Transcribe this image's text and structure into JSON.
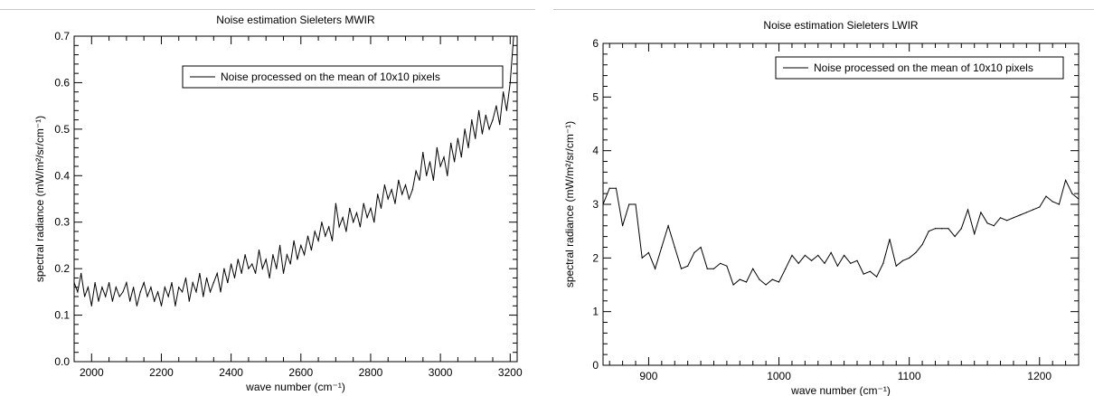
{
  "chart_data": [
    {
      "type": "line",
      "title": "Noise estimation Sieleters MWIR",
      "xlabel": "wave number (cm⁻¹)",
      "ylabel": "spectral radiance (mW/m²/sr/cm⁻¹)",
      "xlim": [
        1950,
        3220
      ],
      "ylim": [
        0.0,
        0.7
      ],
      "x_ticks": [
        2000,
        2200,
        2400,
        2600,
        2800,
        3000,
        3200
      ],
      "y_ticks": [
        0.0,
        0.1,
        0.2,
        0.3,
        0.4,
        0.5,
        0.6,
        0.7
      ],
      "y_tick_decimals": 1,
      "grid": false,
      "legend_position": "top-right",
      "series": [
        {
          "name": "Noise processed on the mean of 10x10 pixels",
          "color": "#000000",
          "x": [
            1950,
            1960,
            1970,
            1980,
            1990,
            2000,
            2010,
            2020,
            2030,
            2040,
            2050,
            2060,
            2070,
            2080,
            2090,
            2100,
            2110,
            2120,
            2130,
            2140,
            2150,
            2160,
            2170,
            2180,
            2190,
            2200,
            2210,
            2220,
            2230,
            2240,
            2250,
            2260,
            2270,
            2280,
            2290,
            2300,
            2310,
            2320,
            2330,
            2340,
            2350,
            2360,
            2370,
            2380,
            2390,
            2400,
            2410,
            2420,
            2430,
            2440,
            2450,
            2460,
            2470,
            2480,
            2490,
            2500,
            2510,
            2520,
            2530,
            2540,
            2550,
            2560,
            2570,
            2580,
            2590,
            2600,
            2610,
            2620,
            2630,
            2640,
            2650,
            2660,
            2670,
            2680,
            2690,
            2700,
            2710,
            2720,
            2730,
            2740,
            2750,
            2760,
            2770,
            2780,
            2790,
            2800,
            2810,
            2820,
            2830,
            2840,
            2850,
            2860,
            2870,
            2880,
            2890,
            2900,
            2910,
            2920,
            2930,
            2940,
            2950,
            2960,
            2970,
            2980,
            2990,
            3000,
            3010,
            3020,
            3030,
            3040,
            3050,
            3060,
            3070,
            3080,
            3090,
            3100,
            3110,
            3120,
            3130,
            3140,
            3150,
            3160,
            3170,
            3180,
            3190,
            3200,
            3210
          ],
          "y": [
            0.17,
            0.15,
            0.19,
            0.14,
            0.16,
            0.12,
            0.17,
            0.13,
            0.16,
            0.14,
            0.17,
            0.13,
            0.16,
            0.14,
            0.15,
            0.17,
            0.13,
            0.16,
            0.12,
            0.15,
            0.17,
            0.14,
            0.16,
            0.13,
            0.15,
            0.12,
            0.16,
            0.14,
            0.17,
            0.12,
            0.16,
            0.15,
            0.18,
            0.13,
            0.17,
            0.15,
            0.19,
            0.14,
            0.18,
            0.15,
            0.17,
            0.19,
            0.15,
            0.2,
            0.17,
            0.21,
            0.18,
            0.22,
            0.19,
            0.23,
            0.2,
            0.21,
            0.19,
            0.24,
            0.2,
            0.22,
            0.18,
            0.23,
            0.2,
            0.25,
            0.19,
            0.23,
            0.21,
            0.26,
            0.22,
            0.25,
            0.23,
            0.27,
            0.24,
            0.28,
            0.26,
            0.3,
            0.27,
            0.29,
            0.26,
            0.34,
            0.29,
            0.31,
            0.28,
            0.33,
            0.3,
            0.32,
            0.29,
            0.34,
            0.31,
            0.33,
            0.3,
            0.36,
            0.33,
            0.38,
            0.35,
            0.37,
            0.34,
            0.39,
            0.36,
            0.38,
            0.35,
            0.37,
            0.41,
            0.39,
            0.45,
            0.4,
            0.43,
            0.39,
            0.46,
            0.42,
            0.44,
            0.4,
            0.47,
            0.43,
            0.48,
            0.44,
            0.5,
            0.46,
            0.52,
            0.48,
            0.54,
            0.49,
            0.53,
            0.5,
            0.52,
            0.55,
            0.51,
            0.58,
            0.54,
            0.6,
            0.7
          ]
        }
      ]
    },
    {
      "type": "line",
      "title": "Noise estimation Sieleters LWIR",
      "xlabel": "wave number (cm⁻¹)",
      "ylabel": "spectral radiance (mW/m²/sr/cm⁻¹)",
      "xlim": [
        865,
        1230
      ],
      "ylim": [
        0,
        6
      ],
      "x_ticks": [
        900,
        1000,
        1100,
        1200
      ],
      "y_ticks": [
        0,
        1,
        2,
        3,
        4,
        5,
        6
      ],
      "y_tick_decimals": 0,
      "grid": false,
      "legend_position": "top-right",
      "series": [
        {
          "name": "Noise processed on the mean of 10x10 pixels",
          "color": "#000000",
          "x": [
            865,
            870,
            875,
            880,
            885,
            890,
            895,
            900,
            905,
            910,
            915,
            920,
            925,
            930,
            935,
            940,
            945,
            950,
            955,
            960,
            965,
            970,
            975,
            980,
            985,
            990,
            995,
            1000,
            1005,
            1010,
            1015,
            1020,
            1025,
            1030,
            1035,
            1040,
            1045,
            1050,
            1055,
            1060,
            1065,
            1070,
            1075,
            1080,
            1085,
            1090,
            1095,
            1100,
            1105,
            1110,
            1115,
            1120,
            1125,
            1130,
            1135,
            1140,
            1145,
            1150,
            1155,
            1160,
            1165,
            1170,
            1175,
            1180,
            1185,
            1190,
            1195,
            1200,
            1205,
            1210,
            1215,
            1220,
            1225,
            1230
          ],
          "y": [
            3.0,
            3.3,
            3.3,
            2.6,
            3.0,
            3.0,
            2.0,
            2.1,
            1.8,
            2.2,
            2.6,
            2.2,
            1.8,
            1.85,
            2.1,
            2.2,
            1.8,
            1.8,
            1.9,
            1.85,
            1.5,
            1.6,
            1.55,
            1.8,
            1.6,
            1.5,
            1.6,
            1.55,
            1.8,
            2.05,
            1.9,
            2.05,
            1.95,
            2.05,
            1.9,
            2.1,
            1.85,
            2.05,
            1.9,
            1.95,
            1.7,
            1.75,
            1.65,
            1.9,
            2.35,
            1.85,
            1.95,
            2.0,
            2.1,
            2.25,
            2.5,
            2.55,
            2.55,
            2.55,
            2.4,
            2.55,
            2.9,
            2.45,
            2.85,
            2.65,
            2.6,
            2.75,
            2.7,
            2.75,
            2.8,
            2.85,
            2.9,
            2.95,
            3.15,
            3.05,
            3.0,
            3.45,
            3.2,
            3.1
          ]
        }
      ]
    }
  ]
}
